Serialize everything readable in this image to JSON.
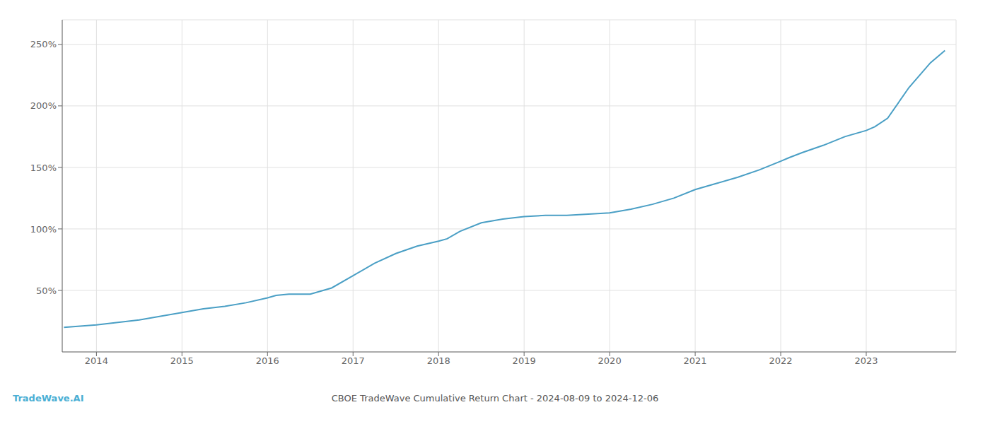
{
  "chart_data": {
    "type": "line",
    "title": "CBOE TradeWave Cumulative Return Chart - 2024-08-09 to 2024-12-06",
    "annotations": [
      "TradeWave.AI"
    ],
    "x": [
      2013.62,
      2014.0,
      2014.25,
      2014.5,
      2014.75,
      2015.0,
      2015.25,
      2015.5,
      2015.75,
      2016.0,
      2016.1,
      2016.25,
      2016.5,
      2016.75,
      2017.0,
      2017.25,
      2017.5,
      2017.75,
      2018.0,
      2018.1,
      2018.25,
      2018.5,
      2018.75,
      2019.0,
      2019.25,
      2019.5,
      2019.75,
      2020.0,
      2020.25,
      2020.5,
      2020.75,
      2021.0,
      2021.25,
      2021.5,
      2021.75,
      2022.0,
      2022.1,
      2022.25,
      2022.5,
      2022.75,
      2023.0,
      2023.1,
      2023.25,
      2023.5,
      2023.75,
      2023.92
    ],
    "values": [
      20,
      22,
      24,
      26,
      29,
      32,
      35,
      37,
      40,
      44,
      46,
      47,
      47,
      52,
      62,
      72,
      80,
      86,
      90,
      92,
      98,
      105,
      108,
      110,
      111,
      111,
      112,
      113,
      116,
      120,
      125,
      132,
      137,
      142,
      148,
      155,
      158,
      162,
      168,
      175,
      180,
      183,
      190,
      215,
      235,
      245
    ],
    "color": "#4a9fc5",
    "xlim": [
      2013.6,
      2024.05
    ],
    "xticks": [
      2014,
      2015,
      2016,
      2017,
      2018,
      2019,
      2020,
      2021,
      2022,
      2023
    ],
    "ylim": [
      0,
      270
    ],
    "yticks": [
      {
        "value": 50,
        "label": "50%"
      },
      {
        "value": 100,
        "label": "100%"
      },
      {
        "value": 150,
        "label": "150%"
      },
      {
        "value": 200,
        "label": "200%"
      },
      {
        "value": 250,
        "label": "250%"
      }
    ],
    "grid": true
  }
}
